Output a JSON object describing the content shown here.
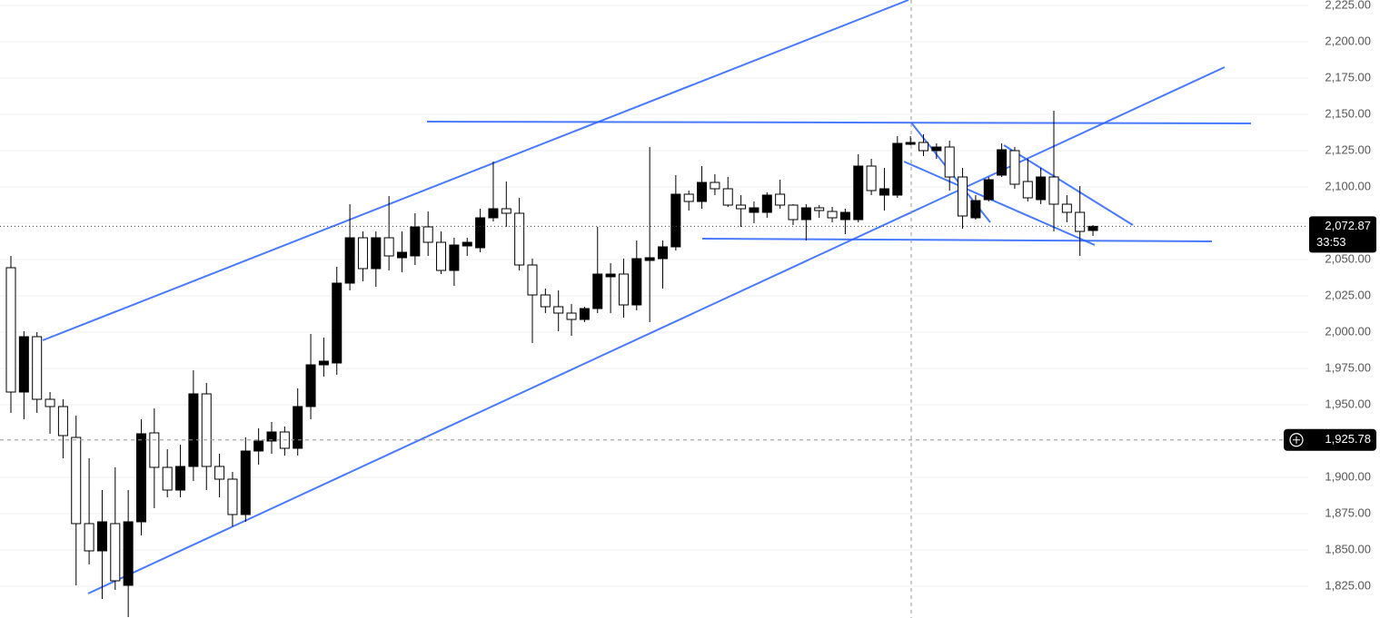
{
  "chart_data": {
    "type": "candlestick",
    "open": [
      2044.375,
      1958.75,
      1996.875,
      1953.75,
      1948.75,
      1927.5,
      1868.125,
      1849.375,
      1868.125,
      1825.625,
      1869.375,
      1930.625,
      1906.875,
      1891.25,
      1907.5,
      1957.5,
      1907.5,
      1898.75,
      1874.375,
      1918.125,
      1925,
      1931.25,
      1920,
      1948.75,
      1977.5,
      1978.75,
      2033.75,
      2065,
      2043.75,
      2065,
      2051.25,
      2052.5,
      2072.5,
      2061.875,
      2042.5,
      2059.375,
      2058.125,
      2078.75,
      2085,
      2081.875,
      2046.25,
      2025.625,
      2017.5,
      2013.125,
      2008.75,
      2016.25,
      2038.125,
      2040,
      2018.75,
      2049.375,
      2050.625,
      2058.75,
      2095,
      2090,
      2103.125,
      2098.75,
      2087.5,
      2082.5,
      2082.5,
      2095,
      2087.5,
      2077.5,
      2085.625,
      2083.125,
      2077.5,
      2077.5,
      2114.375,
      2094.375,
      2094.375,
      2129.375,
      2130.625,
      2125,
      2127.5,
      2106.875,
      2078.75,
      2091.25,
      2108.125,
      2125,
      2103.75,
      2091.25,
      2106.875,
      2088.125,
      2082.5,
      2070
    ],
    "high": [
      2052.5,
      2000.625,
      2000,
      1958.75,
      1953.75,
      1942.5,
      1913.125,
      1891.25,
      1906.875,
      1891.25,
      1940,
      1947.5,
      1919.375,
      1922.5,
      1973.75,
      1965,
      1916.25,
      1903.75,
      1927.5,
      1933.75,
      1938.125,
      1935,
      1961.25,
      1998.75,
      1996.25,
      2045,
      2088.125,
      2069.375,
      2069.375,
      2093.75,
      2069.375,
      2081.875,
      2083.125,
      2069.375,
      2065,
      2065,
      2085,
      2117.5,
      2103.75,
      2092.5,
      2050.625,
      2030,
      2028.75,
      2019.375,
      2017.5,
      2072.5,
      2047.5,
      2050.625,
      2063.125,
      2127.5,
      2063.125,
      2108.125,
      2097.5,
      2114.375,
      2108.75,
      2106.875,
      2094.375,
      2090,
      2096.25,
      2105,
      2088.125,
      2088.125,
      2087.5,
      2086.25,
      2085,
      2122.5,
      2119.375,
      2113.125,
      2135,
      2135,
      2136.25,
      2130,
      2131.875,
      2113.125,
      2094.375,
      2106.875,
      2130,
      2127.5,
      2119.375,
      2113.125,
      2152.5,
      2094.375,
      2100.625,
      2073.75
    ],
    "low": [
      1944.375,
      1940,
      1944.375,
      1930,
      1913.125,
      1825.625,
      1840,
      1816.25,
      1822.5,
      1803.75,
      1860,
      1878.75,
      1886.25,
      1886.25,
      1897.5,
      1891.25,
      1886.25,
      1866.25,
      1869.375,
      1908.75,
      1916.25,
      1915,
      1915,
      1940,
      1969.375,
      1970.625,
      2028.75,
      2035,
      2031.25,
      2042.5,
      2041.25,
      2046.25,
      2052.5,
      2040,
      2031.875,
      2052.5,
      2055,
      2076.25,
      2072.5,
      2042.5,
      1992.5,
      2013.125,
      2000.625,
      1997.5,
      2006.875,
      2013.125,
      2013.125,
      2010,
      2015,
      2006.875,
      2030,
      2056.25,
      2083.75,
      2085,
      2094.375,
      2086.25,
      2072.5,
      2075,
      2078.75,
      2085,
      2073.75,
      2063.125,
      2078.75,
      2075.625,
      2067.5,
      2075.625,
      2094.375,
      2083.75,
      2092.5,
      2128.75,
      2121.25,
      2119.375,
      2097.5,
      2071.25,
      2077.5,
      2090,
      2106.875,
      2098.75,
      2090,
      2088.125,
      2069.375,
      2075.625,
      2052.5,
      2066.25
    ],
    "close": [
      1958.75,
      1996.875,
      1953.75,
      1948.75,
      1928.75,
      1868.125,
      1849.375,
      1869.375,
      1828.75,
      1869.375,
      1930,
      1906.875,
      1891.25,
      1907.5,
      1957.5,
      1907.5,
      1898.75,
      1874.375,
      1918.125,
      1925,
      1931.25,
      1920,
      1948.75,
      1977.5,
      1980,
      2033.75,
      2065,
      2043.75,
      2065,
      2052.5,
      2055,
      2072.5,
      2061.875,
      2042.5,
      2060,
      2061.875,
      2078.75,
      2085,
      2081.875,
      2046.25,
      2025.625,
      2017.5,
      2013.125,
      2008.75,
      2016.25,
      2040,
      2040,
      2018.75,
      2050.625,
      2051.25,
      2058.75,
      2095,
      2090,
      2103.125,
      2098.75,
      2087.5,
      2085,
      2085.625,
      2094.375,
      2087.5,
      2077.5,
      2085.625,
      2083.75,
      2078.75,
      2082.5,
      2114.375,
      2097.5,
      2098.75,
      2130,
      2130.625,
      2125,
      2127.5,
      2106.875,
      2080,
      2090.625,
      2105,
      2125.625,
      2101.875,
      2092.5,
      2106.875,
      2088.125,
      2082.5,
      2069.375,
      2072.87
    ],
    "up_color": "#000000",
    "down_color": "#ffffff",
    "ylim": [
      1803.125,
      2228.75
    ],
    "yticks": [
      {
        "value": 2225,
        "label": "2,225.00"
      },
      {
        "value": 2200,
        "label": "2,200.00"
      },
      {
        "value": 2175,
        "label": "2,175.00"
      },
      {
        "value": 2150,
        "label": "2,150.00"
      },
      {
        "value": 2125,
        "label": "2,125.00"
      },
      {
        "value": 2100,
        "label": "2,100.00"
      },
      {
        "value": 2075,
        "label": "2,075.00"
      },
      {
        "value": 2050,
        "label": "2,050.00"
      },
      {
        "value": 2025,
        "label": "2,025.00"
      },
      {
        "value": 2000,
        "label": "2,000.00"
      },
      {
        "value": 1975,
        "label": "1,975.00"
      },
      {
        "value": 1950,
        "label": "1,950.00"
      },
      {
        "value": 1925,
        "label": "1,925.00"
      },
      {
        "value": 1900,
        "label": "1,900.00"
      },
      {
        "value": 1875,
        "label": "1,875.00"
      },
      {
        "value": 1850,
        "label": "1,850.00"
      },
      {
        "value": 1825,
        "label": "1,825.00"
      }
    ],
    "grid": true,
    "last_price": {
      "value": 2072.87,
      "label": "2,072.87"
    },
    "countdown": "33:53",
    "crosshair": {
      "value": 1925.78,
      "label": "1,925.78"
    }
  }
}
